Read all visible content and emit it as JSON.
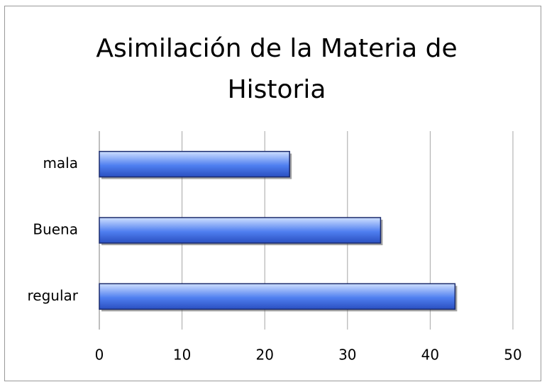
{
  "chart_data": {
    "type": "bar",
    "orientation": "horizontal",
    "title": "Asimilación de la Materia de Historia",
    "categories": [
      "mala",
      "Buena",
      "regular"
    ],
    "values": [
      23,
      34,
      43
    ],
    "color": "#4f7ff0",
    "xlim": [
      0,
      50
    ],
    "xticks": [
      0,
      10,
      20,
      30,
      40,
      50
    ],
    "grid": true
  }
}
